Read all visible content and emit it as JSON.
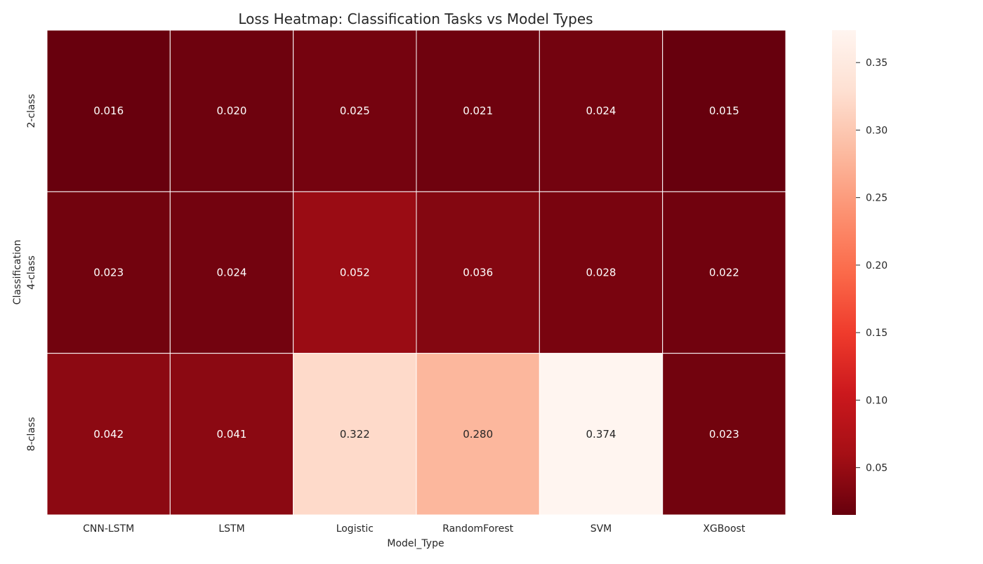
{
  "chart_data": {
    "type": "heatmap",
    "title": "Loss Heatmap: Classification Tasks vs Model Types",
    "xlabel": "Model_Type",
    "ylabel": "Classification",
    "x_categories": [
      "CNN-LSTM",
      "LSTM",
      "Logistic",
      "RandomForest",
      "SVM",
      "XGBoost"
    ],
    "y_categories": [
      "2-class",
      "4-class",
      "8-class"
    ],
    "values": [
      [
        0.016,
        0.02,
        0.025,
        0.021,
        0.024,
        0.015
      ],
      [
        0.023,
        0.024,
        0.052,
        0.036,
        0.028,
        0.022
      ],
      [
        0.042,
        0.041,
        0.322,
        0.28,
        0.374,
        0.023
      ]
    ],
    "value_labels": [
      [
        "0.016",
        "0.020",
        "0.025",
        "0.021",
        "0.024",
        "0.015"
      ],
      [
        "0.023",
        "0.024",
        "0.052",
        "0.036",
        "0.028",
        "0.022"
      ],
      [
        "0.042",
        "0.041",
        "0.322",
        "0.280",
        "0.374",
        "0.023"
      ]
    ],
    "colormap": "Reds_r",
    "colorbar": {
      "vmin": 0.015,
      "vmax": 0.374,
      "ticks": [
        0.05,
        0.1,
        0.15,
        0.2,
        0.25,
        0.3,
        0.35
      ],
      "tick_labels": [
        "0.05",
        "0.10",
        "0.15",
        "0.20",
        "0.25",
        "0.30",
        "0.35"
      ]
    },
    "grid": false,
    "legend": "colorbar-right"
  }
}
